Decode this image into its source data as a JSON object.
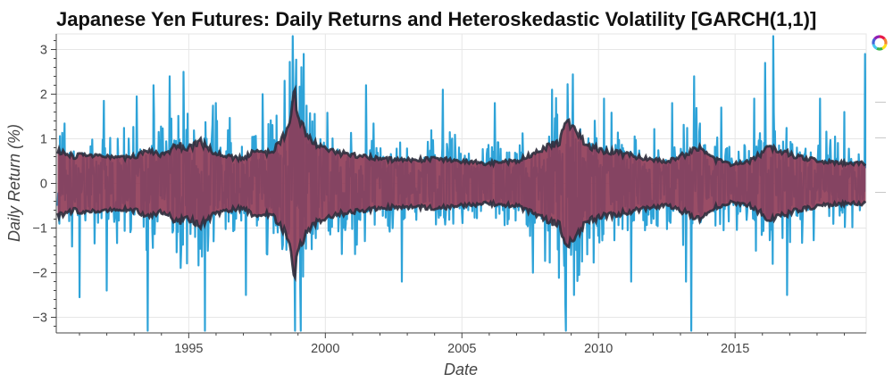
{
  "chart_data": {
    "type": "line",
    "title": "Japanese Yen Futures: Daily Returns and Heteroskedastic Volatility [GARCH(1,1)]",
    "xlabel": "Date",
    "ylabel": "Daily Return (%)",
    "xlim": [
      1990.15,
      2019.8
    ],
    "ylim": [
      -3.35,
      3.35
    ],
    "x_ticks": [
      1995,
      2000,
      2005,
      2010,
      2015
    ],
    "y_ticks": [
      3,
      2,
      1,
      0,
      -1,
      -2,
      -3
    ],
    "y_tick_labels": [
      "3",
      "2",
      "1",
      "0",
      "−1",
      "−2",
      "−3"
    ],
    "grid": true,
    "legend": "none",
    "series": [
      {
        "role": "daily_returns",
        "color": "#2ea3d8",
        "spike_events": [
          {
            "x": 1991.0,
            "y": -2.55
          },
          {
            "x": 1991.9,
            "y": 1.85
          },
          {
            "x": 1992.0,
            "y": -2.4
          },
          {
            "x": 1993.1,
            "y": 1.95
          },
          {
            "x": 1993.5,
            "y": -3.3
          },
          {
            "x": 1993.7,
            "y": 2.2
          },
          {
            "x": 1994.3,
            "y": 2.4
          },
          {
            "x": 1994.8,
            "y": 2.5
          },
          {
            "x": 1995.6,
            "y": -3.3
          },
          {
            "x": 1996.0,
            "y": 1.8
          },
          {
            "x": 1997.1,
            "y": -2.5
          },
          {
            "x": 1997.7,
            "y": 2.0
          },
          {
            "x": 1998.5,
            "y": 2.3
          },
          {
            "x": 1998.8,
            "y": 3.3
          },
          {
            "x": 1998.9,
            "y": -3.3
          },
          {
            "x": 1999.1,
            "y": -3.3
          },
          {
            "x": 1999.2,
            "y": 2.9
          },
          {
            "x": 2001.5,
            "y": 2.2
          },
          {
            "x": 2002.8,
            "y": -2.2
          },
          {
            "x": 2004.3,
            "y": 2.1
          },
          {
            "x": 2006.2,
            "y": 1.8
          },
          {
            "x": 2007.6,
            "y": -2.0
          },
          {
            "x": 2008.3,
            "y": 2.1
          },
          {
            "x": 2008.8,
            "y": -3.3
          },
          {
            "x": 2009.1,
            "y": -2.5
          },
          {
            "x": 2010.2,
            "y": 1.9
          },
          {
            "x": 2011.2,
            "y": -2.2
          },
          {
            "x": 2012.7,
            "y": 1.8
          },
          {
            "x": 2013.2,
            "y": -2.2
          },
          {
            "x": 2013.4,
            "y": -3.3
          },
          {
            "x": 2013.5,
            "y": 2.4
          },
          {
            "x": 2014.5,
            "y": 1.7
          },
          {
            "x": 2015.7,
            "y": 1.9
          },
          {
            "x": 2016.1,
            "y": 2.7
          },
          {
            "x": 2016.4,
            "y": 3.3
          },
          {
            "x": 2016.9,
            "y": -2.5
          },
          {
            "x": 2018.1,
            "y": 1.9
          },
          {
            "x": 2019.0,
            "y": 1.6
          },
          {
            "x": 2019.75,
            "y": 2.9
          }
        ]
      },
      {
        "role": "garch_volatility",
        "color": "#2f2f3d",
        "values": [
          {
            "x": 1990.2,
            "y": 0.72
          },
          {
            "x": 1990.8,
            "y": 0.6
          },
          {
            "x": 1991.5,
            "y": 0.65
          },
          {
            "x": 1992.3,
            "y": 0.55
          },
          {
            "x": 1993.0,
            "y": 0.6
          },
          {
            "x": 1993.6,
            "y": 0.75
          },
          {
            "x": 1994.0,
            "y": 0.65
          },
          {
            "x": 1994.6,
            "y": 0.85
          },
          {
            "x": 1995.0,
            "y": 0.8
          },
          {
            "x": 1995.4,
            "y": 0.95
          },
          {
            "x": 1995.8,
            "y": 0.75
          },
          {
            "x": 1996.3,
            "y": 0.6
          },
          {
            "x": 1997.0,
            "y": 0.55
          },
          {
            "x": 1997.5,
            "y": 0.75
          },
          {
            "x": 1998.0,
            "y": 0.68
          },
          {
            "x": 1998.4,
            "y": 0.95
          },
          {
            "x": 1998.75,
            "y": 1.45
          },
          {
            "x": 1998.85,
            "y": 2.1
          },
          {
            "x": 1999.0,
            "y": 1.6
          },
          {
            "x": 1999.3,
            "y": 1.05
          },
          {
            "x": 1999.8,
            "y": 0.82
          },
          {
            "x": 2000.5,
            "y": 0.68
          },
          {
            "x": 2001.3,
            "y": 0.62
          },
          {
            "x": 2002.0,
            "y": 0.55
          },
          {
            "x": 2003.0,
            "y": 0.52
          },
          {
            "x": 2004.0,
            "y": 0.55
          },
          {
            "x": 2005.0,
            "y": 0.5
          },
          {
            "x": 2006.0,
            "y": 0.45
          },
          {
            "x": 2007.0,
            "y": 0.5
          },
          {
            "x": 2007.8,
            "y": 0.72
          },
          {
            "x": 2008.6,
            "y": 0.95
          },
          {
            "x": 2008.85,
            "y": 1.5
          },
          {
            "x": 2009.1,
            "y": 1.2
          },
          {
            "x": 2009.6,
            "y": 0.85
          },
          {
            "x": 2010.3,
            "y": 0.72
          },
          {
            "x": 2011.0,
            "y": 0.65
          },
          {
            "x": 2011.8,
            "y": 0.55
          },
          {
            "x": 2012.5,
            "y": 0.5
          },
          {
            "x": 2013.2,
            "y": 0.65
          },
          {
            "x": 2013.6,
            "y": 0.82
          },
          {
            "x": 2014.2,
            "y": 0.55
          },
          {
            "x": 2014.8,
            "y": 0.42
          },
          {
            "x": 2015.5,
            "y": 0.48
          },
          {
            "x": 2016.3,
            "y": 0.82
          },
          {
            "x": 2016.9,
            "y": 0.68
          },
          {
            "x": 2017.6,
            "y": 0.55
          },
          {
            "x": 2018.4,
            "y": 0.48
          },
          {
            "x": 2019.2,
            "y": 0.45
          },
          {
            "x": 2019.75,
            "y": 0.45
          }
        ]
      },
      {
        "role": "volatility_band_fill",
        "color": "#8f3a55"
      }
    ]
  },
  "toolbar": {
    "logo_icon": "bokeh-logo-icon",
    "logo_colors": [
      "#e6194b",
      "#f58231",
      "#ffe119",
      "#3cb44b",
      "#46c8f0",
      "#4363d8",
      "#911eb4"
    ]
  }
}
